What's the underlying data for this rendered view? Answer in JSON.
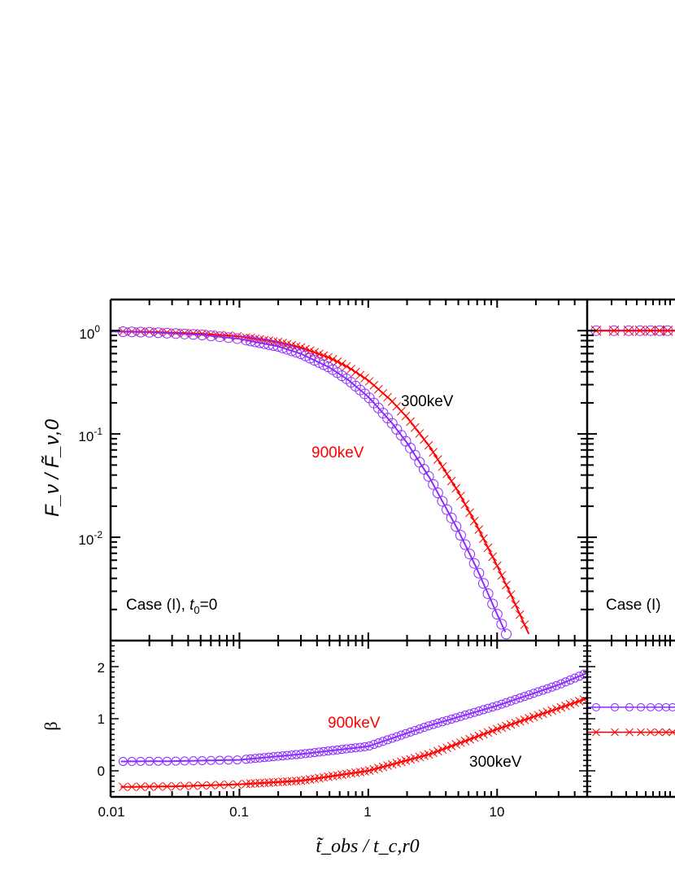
{
  "chart_data": [
    {
      "type": "line",
      "panel": "left",
      "x_scale": "log",
      "xlim": [
        0.01,
        50
      ],
      "x_tick_labels": [
        "0.01",
        "0.1",
        "1",
        "10"
      ],
      "xlabel": "t̃_obs / t_c,r0",
      "top": {
        "ylabel": "F_ν / F̃_ν,0",
        "y_scale": "log",
        "ylim": [
          0.001,
          2
        ],
        "y_tick_labels": [
          {
            "base": "10",
            "exp": "0"
          },
          {
            "base": "10",
            "exp": "-1"
          },
          {
            "base": "10",
            "exp": "-2"
          }
        ],
        "annotation": {
          "case": "Case (I), ",
          "t": "t",
          "sub": "0",
          "rest": "=0"
        },
        "labels": [
          {
            "text": "300keV",
            "color": "#000000"
          },
          {
            "text": "900keV",
            "color": "#ff0000"
          }
        ],
        "series": [
          {
            "marker": "cross",
            "color": "#ff0000",
            "x": [
              0.01,
              0.02,
              0.05,
              0.1,
              0.2,
              0.3,
              0.5,
              0.7,
              1,
              1.5,
              2,
              3,
              5,
              7,
              10,
              13,
              17.6
            ],
            "y": [
              0.987,
              0.974,
              0.936,
              0.878,
              0.775,
              0.687,
              0.547,
              0.442,
              0.33,
              0.212,
              0.145,
              0.0752,
              0.0275,
              0.0128,
              0.0053,
              0.00266,
              0.00116
            ]
          },
          {
            "marker": "circle",
            "color": "#8b2cff",
            "x": [
              0.01,
              0.02,
              0.05,
              0.1,
              0.2,
              0.3,
              0.5,
              0.7,
              1,
              1.5,
              2,
              3,
              5,
              7,
              10,
              11.4,
              12
            ],
            "y": [
              0.982,
              0.964,
              0.912,
              0.834,
              0.703,
              0.597,
              0.44,
              0.333,
              0.229,
              0.131,
              0.082,
              0.0374,
              0.0116,
              0.0049,
              0.0018,
              0.00126,
              0.0011
            ]
          }
        ]
      },
      "bottom": {
        "ylabel": "β",
        "y_scale": "linear",
        "ylim": [
          -0.5,
          2.5
        ],
        "y_tick_labels": [
          "0",
          "1",
          "2"
        ],
        "labels": [
          {
            "text": "900keV",
            "color": "#ff0000"
          },
          {
            "text": "300keV",
            "color": "#000000"
          }
        ],
        "series": [
          {
            "marker": "circle",
            "color": "#8b2cff",
            "x": [
              0.012,
              0.03,
              0.1,
              0.3,
              1,
              3,
              10,
              30,
              50
            ],
            "y": [
              0.18,
              0.185,
              0.21,
              0.32,
              0.47,
              0.87,
              1.25,
              1.65,
              1.88
            ]
          },
          {
            "marker": "cross",
            "color": "#ff0000",
            "x": [
              0.012,
              0.03,
              0.1,
              0.3,
              1,
              3,
              10,
              30,
              50
            ],
            "y": [
              -0.31,
              -0.3,
              -0.26,
              -0.19,
              0.0,
              0.32,
              0.8,
              1.2,
              1.39
            ]
          }
        ]
      }
    },
    {
      "type": "line",
      "panel": "right (cropped)",
      "top": {
        "annotation": "Case (I)",
        "series": [
          {
            "marker": "circle",
            "color": "#8b2cff",
            "y": 1.0
          },
          {
            "marker": "cross",
            "color": "#ff0000",
            "y": 1.0
          }
        ]
      },
      "bottom": {
        "series": [
          {
            "marker": "circle",
            "color": "#8b2cff",
            "y": 1.22
          },
          {
            "marker": "cross",
            "color": "#ff0000",
            "y": 0.74
          }
        ]
      }
    }
  ]
}
